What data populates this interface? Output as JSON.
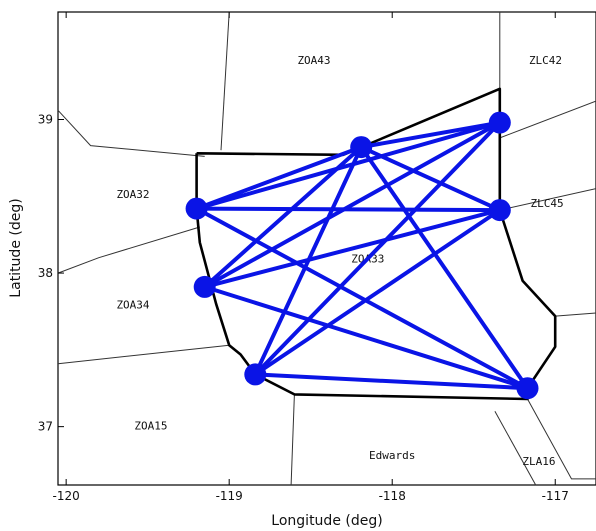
{
  "axes": {
    "xlabel": "Longitude (deg)",
    "ylabel": "Latitude (deg)",
    "xlim": [
      -120.05,
      -116.75
    ],
    "ylim": [
      36.62,
      39.7
    ],
    "xticks": [
      -120,
      -119,
      -118,
      -117
    ],
    "xtick_labels": [
      "-120",
      "-119",
      "-118",
      "-117"
    ],
    "yticks": [
      37,
      38,
      39
    ],
    "ytick_labels": [
      "37",
      "38",
      "39"
    ]
  },
  "sector_labels": [
    {
      "text": "ZOA43",
      "lon": -118.48,
      "lat": 39.36
    },
    {
      "text": "ZLC42",
      "lon": -117.06,
      "lat": 39.36
    },
    {
      "text": "ZOA32",
      "lon": -119.59,
      "lat": 38.49
    },
    {
      "text": "ZLC45",
      "lon": -117.05,
      "lat": 38.43
    },
    {
      "text": "ZOA33",
      "lon": -118.15,
      "lat": 38.07
    },
    {
      "text": "ZOA34",
      "lon": -119.59,
      "lat": 37.77
    },
    {
      "text": "ZOA15",
      "lon": -119.48,
      "lat": 36.98
    },
    {
      "text": "Edwards",
      "lon": -118.0,
      "lat": 36.79
    },
    {
      "text": "ZLA16",
      "lon": -117.1,
      "lat": 36.75
    }
  ],
  "nodes": [
    {
      "id": "n1",
      "lon": -118.19,
      "lat": 38.82
    },
    {
      "id": "n2",
      "lon": -117.34,
      "lat": 38.98
    },
    {
      "id": "n3",
      "lon": -119.2,
      "lat": 38.42
    },
    {
      "id": "n4",
      "lon": -117.34,
      "lat": 38.41
    },
    {
      "id": "n5",
      "lon": -119.15,
      "lat": 37.91
    },
    {
      "id": "n6",
      "lon": -118.84,
      "lat": 37.34
    },
    {
      "id": "n7",
      "lon": -117.17,
      "lat": 37.25
    }
  ],
  "links": [
    [
      "n1",
      "n2"
    ],
    [
      "n1",
      "n3"
    ],
    [
      "n1",
      "n4"
    ],
    [
      "n1",
      "n5"
    ],
    [
      "n1",
      "n6"
    ],
    [
      "n1",
      "n7"
    ],
    [
      "n2",
      "n3"
    ],
    [
      "n2",
      "n5"
    ],
    [
      "n2",
      "n6"
    ],
    [
      "n3",
      "n4"
    ],
    [
      "n3",
      "n7"
    ],
    [
      "n4",
      "n5"
    ],
    [
      "n4",
      "n6"
    ],
    [
      "n5",
      "n7"
    ],
    [
      "n6",
      "n7"
    ]
  ],
  "thick_boundary": [
    [
      -119.2,
      38.78
    ],
    [
      -118.3,
      38.77
    ],
    [
      -117.34,
      39.2
    ],
    [
      -117.34,
      38.41
    ],
    [
      -117.2,
      37.95
    ],
    [
      -117.0,
      37.72
    ],
    [
      -117.0,
      37.52
    ],
    [
      -117.17,
      37.25
    ],
    [
      -117.17,
      37.18
    ],
    [
      -118.6,
      37.21
    ],
    [
      -118.84,
      37.34
    ],
    [
      -118.93,
      37.47
    ],
    [
      -119.0,
      37.53
    ],
    [
      -119.08,
      37.8
    ],
    [
      -119.18,
      38.2
    ],
    [
      -119.2,
      38.42
    ],
    [
      -119.2,
      38.78
    ]
  ],
  "thin_boundaries": [
    [
      [
        -120.05,
        39.06
      ],
      [
        -119.85,
        38.83
      ],
      [
        -119.15,
        38.76
      ]
    ],
    [
      [
        -119.0,
        39.7
      ],
      [
        -119.05,
        38.8
      ]
    ],
    [
      [
        -117.34,
        39.7
      ],
      [
        -117.34,
        39.2
      ]
    ],
    [
      [
        -117.34,
        38.88
      ],
      [
        -116.75,
        39.12
      ]
    ],
    [
      [
        -117.34,
        38.41
      ],
      [
        -116.75,
        38.55
      ]
    ],
    [
      [
        -117.0,
        37.72
      ],
      [
        -116.75,
        37.74
      ]
    ],
    [
      [
        -120.05,
        38.0
      ],
      [
        -119.8,
        38.1
      ],
      [
        -119.18,
        38.3
      ]
    ],
    [
      [
        -120.05,
        37.41
      ],
      [
        -119.0,
        37.53
      ]
    ],
    [
      [
        -118.6,
        37.21
      ],
      [
        -118.62,
        36.62
      ]
    ],
    [
      [
        -117.17,
        37.18
      ],
      [
        -116.9,
        36.66
      ],
      [
        -116.75,
        36.66
      ]
    ],
    [
      [
        -117.37,
        37.1
      ],
      [
        -117.12,
        36.62
      ]
    ]
  ],
  "colors": {
    "link": "#0a14e6",
    "node": "#0a14e6"
  }
}
